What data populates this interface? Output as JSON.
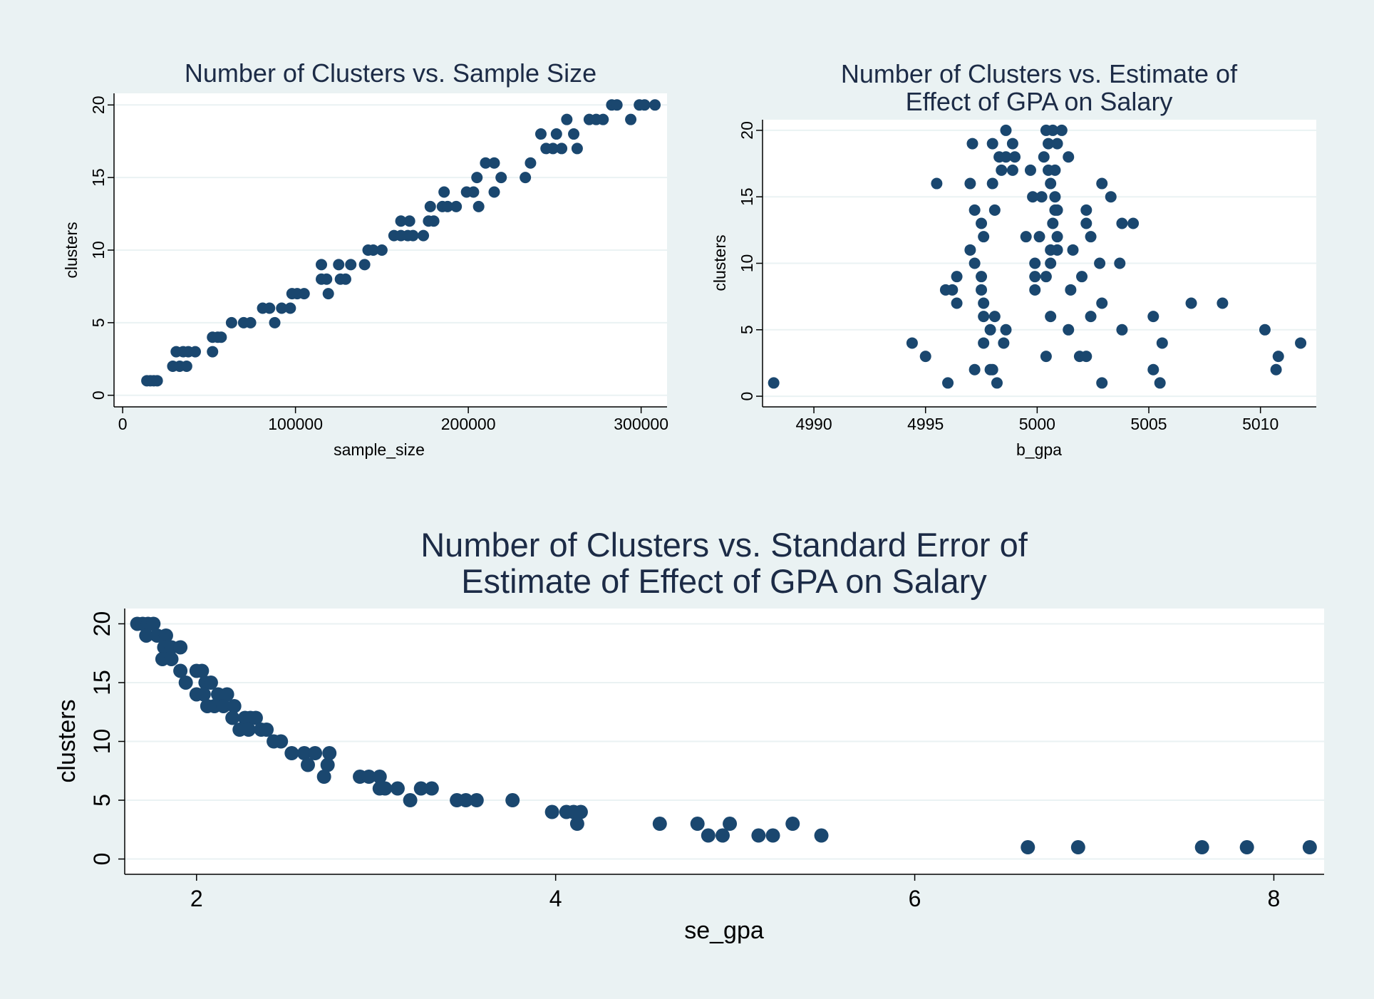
{
  "chart_data": [
    {
      "type": "scatter",
      "title": "Number of Clusters vs. Sample Size",
      "xlabel": "sample_size",
      "ylabel": "clusters",
      "xlim": [
        -5000,
        315000
      ],
      "ylim": [
        -0.8,
        20.8
      ],
      "xticks": [
        0,
        100000,
        200000,
        300000
      ],
      "xtick_labels": [
        "0",
        "100000",
        "200000",
        "300000"
      ],
      "yticks": [
        0,
        5,
        10,
        15,
        20
      ],
      "grid": true,
      "points": [
        [
          14000,
          1
        ],
        [
          16000,
          1
        ],
        [
          18000,
          1
        ],
        [
          20000,
          1
        ],
        [
          29000,
          2
        ],
        [
          33000,
          2
        ],
        [
          37000,
          2
        ],
        [
          31000,
          3
        ],
        [
          35000,
          3
        ],
        [
          38000,
          3
        ],
        [
          42000,
          3
        ],
        [
          52000,
          3
        ],
        [
          52000,
          4
        ],
        [
          55000,
          4
        ],
        [
          57000,
          4
        ],
        [
          63000,
          5
        ],
        [
          70000,
          5
        ],
        [
          74000,
          5
        ],
        [
          88000,
          5
        ],
        [
          81000,
          6
        ],
        [
          85000,
          6
        ],
        [
          92000,
          6
        ],
        [
          97000,
          6
        ],
        [
          98000,
          7
        ],
        [
          101000,
          7
        ],
        [
          105000,
          7
        ],
        [
          119000,
          7
        ],
        [
          115000,
          8
        ],
        [
          118000,
          8
        ],
        [
          126000,
          8
        ],
        [
          129000,
          8
        ],
        [
          115000,
          9
        ],
        [
          125000,
          9
        ],
        [
          132000,
          9
        ],
        [
          140000,
          9
        ],
        [
          142000,
          10
        ],
        [
          145000,
          10
        ],
        [
          150000,
          10
        ],
        [
          157000,
          11
        ],
        [
          161000,
          11
        ],
        [
          165000,
          11
        ],
        [
          168000,
          11
        ],
        [
          174000,
          11
        ],
        [
          161000,
          12
        ],
        [
          166000,
          12
        ],
        [
          177000,
          12
        ],
        [
          180000,
          12
        ],
        [
          178000,
          13
        ],
        [
          185000,
          13
        ],
        [
          188000,
          13
        ],
        [
          193000,
          13
        ],
        [
          206000,
          13
        ],
        [
          186000,
          14
        ],
        [
          199000,
          14
        ],
        [
          203000,
          14
        ],
        [
          215000,
          14
        ],
        [
          205000,
          15
        ],
        [
          219000,
          15
        ],
        [
          233000,
          15
        ],
        [
          210000,
          16
        ],
        [
          215000,
          16
        ],
        [
          236000,
          16
        ],
        [
          245000,
          17
        ],
        [
          249000,
          17
        ],
        [
          254000,
          17
        ],
        [
          263000,
          17
        ],
        [
          242000,
          18
        ],
        [
          251000,
          18
        ],
        [
          261000,
          18
        ],
        [
          257000,
          19
        ],
        [
          270000,
          19
        ],
        [
          274000,
          19
        ],
        [
          278000,
          19
        ],
        [
          294000,
          19
        ],
        [
          283000,
          20
        ],
        [
          286000,
          20
        ],
        [
          299000,
          20
        ],
        [
          302000,
          20
        ],
        [
          308000,
          20
        ]
      ]
    },
    {
      "type": "scatter",
      "title": "Number of Clusters vs. Estimate of Effect of GPA on Salary",
      "title_lines": [
        "Number of Clusters vs. Estimate of",
        "Effect of GPA on Salary"
      ],
      "xlabel": "b_gpa",
      "ylabel": "clusters",
      "xlim": [
        4987.7,
        5012.5
      ],
      "ylim": [
        -0.8,
        20.8
      ],
      "xticks": [
        4990,
        4995,
        5000,
        5005,
        5010
      ],
      "xtick_labels": [
        "4990",
        "4995",
        "5000",
        "5005",
        "5010"
      ],
      "yticks": [
        0,
        5,
        10,
        15,
        20
      ],
      "grid": true,
      "points": [
        [
          4988.2,
          1
        ],
        [
          4996.0,
          1
        ],
        [
          4998.2,
          1
        ],
        [
          5002.9,
          1
        ],
        [
          5005.5,
          1
        ],
        [
          4997.2,
          2
        ],
        [
          4997.9,
          2
        ],
        [
          4998.0,
          2
        ],
        [
          5005.2,
          2
        ],
        [
          5010.7,
          2
        ],
        [
          4995.0,
          3
        ],
        [
          5000.4,
          3
        ],
        [
          5001.9,
          3
        ],
        [
          5002.2,
          3
        ],
        [
          5010.8,
          3
        ],
        [
          4994.4,
          4
        ],
        [
          4997.6,
          4
        ],
        [
          4998.5,
          4
        ],
        [
          5005.6,
          4
        ],
        [
          5011.8,
          4
        ],
        [
          4997.9,
          5
        ],
        [
          4998.6,
          5
        ],
        [
          5001.4,
          5
        ],
        [
          5003.8,
          5
        ],
        [
          5010.2,
          5
        ],
        [
          4997.6,
          6
        ],
        [
          4998.1,
          6
        ],
        [
          5000.6,
          6
        ],
        [
          5002.4,
          6
        ],
        [
          5005.2,
          6
        ],
        [
          4996.4,
          7
        ],
        [
          4997.6,
          7
        ],
        [
          5002.9,
          7
        ],
        [
          5006.9,
          7
        ],
        [
          5008.3,
          7
        ],
        [
          4995.9,
          8
        ],
        [
          4996.2,
          8
        ],
        [
          4997.5,
          8
        ],
        [
          4999.9,
          8
        ],
        [
          5001.5,
          8
        ],
        [
          4996.4,
          9
        ],
        [
          4997.5,
          9
        ],
        [
          4999.9,
          9
        ],
        [
          5000.4,
          9
        ],
        [
          5002.0,
          9
        ],
        [
          4997.2,
          10
        ],
        [
          4999.9,
          10
        ],
        [
          5000.6,
          10
        ],
        [
          5002.8,
          10
        ],
        [
          5003.7,
          10
        ],
        [
          4997.0,
          11
        ],
        [
          5000.6,
          11
        ],
        [
          5000.9,
          11
        ],
        [
          5001.6,
          11
        ],
        [
          4997.6,
          12
        ],
        [
          4999.5,
          12
        ],
        [
          5000.1,
          12
        ],
        [
          5000.9,
          12
        ],
        [
          5002.4,
          12
        ],
        [
          4997.5,
          13
        ],
        [
          5000.7,
          13
        ],
        [
          5002.2,
          13
        ],
        [
          5003.8,
          13
        ],
        [
          5004.3,
          13
        ],
        [
          4997.2,
          14
        ],
        [
          4998.1,
          14
        ],
        [
          5000.8,
          14
        ],
        [
          5000.9,
          14
        ],
        [
          5002.2,
          14
        ],
        [
          4999.8,
          15
        ],
        [
          5000.2,
          15
        ],
        [
          5000.8,
          15
        ],
        [
          5003.3,
          15
        ],
        [
          4995.5,
          16
        ],
        [
          4997.0,
          16
        ],
        [
          4998.0,
          16
        ],
        [
          5000.6,
          16
        ],
        [
          5002.9,
          16
        ],
        [
          4998.4,
          17
        ],
        [
          4998.9,
          17
        ],
        [
          4999.7,
          17
        ],
        [
          5000.5,
          17
        ],
        [
          5000.8,
          17
        ],
        [
          4998.3,
          18
        ],
        [
          4998.6,
          18
        ],
        [
          4999.0,
          18
        ],
        [
          5000.3,
          18
        ],
        [
          5001.4,
          18
        ],
        [
          4997.1,
          19
        ],
        [
          4998.0,
          19
        ],
        [
          4998.9,
          19
        ],
        [
          5000.5,
          19
        ],
        [
          5000.9,
          19
        ],
        [
          4998.6,
          20
        ],
        [
          5000.4,
          20
        ],
        [
          5000.7,
          20
        ],
        [
          5001.1,
          20
        ]
      ]
    },
    {
      "type": "scatter",
      "title": "Number of Clusters vs. Standard Error of Estimate of Effect of GPA on Salary",
      "title_lines": [
        "Number of Clusters vs. Standard Error of",
        "Estimate of Effect of GPA on Salary"
      ],
      "xlabel": "se_gpa",
      "ylabel": "clusters",
      "xlim": [
        1.6,
        8.28
      ],
      "ylim": [
        -1.3,
        21.3
      ],
      "xticks": [
        2,
        4,
        6,
        8
      ],
      "xtick_labels": [
        "2",
        "4",
        "6",
        "8"
      ],
      "yticks": [
        0,
        5,
        10,
        15,
        20
      ],
      "grid": true,
      "points": [
        [
          1.67,
          20
        ],
        [
          1.7,
          20
        ],
        [
          1.73,
          20
        ],
        [
          1.76,
          20
        ],
        [
          1.72,
          19
        ],
        [
          1.78,
          19
        ],
        [
          1.83,
          19
        ],
        [
          1.82,
          18
        ],
        [
          1.86,
          18
        ],
        [
          1.91,
          18
        ],
        [
          1.81,
          17
        ],
        [
          1.86,
          17
        ],
        [
          1.91,
          16
        ],
        [
          2.0,
          16
        ],
        [
          2.03,
          16
        ],
        [
          1.94,
          15
        ],
        [
          2.05,
          15
        ],
        [
          2.08,
          15
        ],
        [
          2.0,
          14
        ],
        [
          2.04,
          14
        ],
        [
          2.12,
          14
        ],
        [
          2.17,
          14
        ],
        [
          2.06,
          13
        ],
        [
          2.1,
          13
        ],
        [
          2.15,
          13
        ],
        [
          2.21,
          13
        ],
        [
          2.2,
          12
        ],
        [
          2.27,
          12
        ],
        [
          2.3,
          12
        ],
        [
          2.33,
          12
        ],
        [
          2.24,
          11
        ],
        [
          2.29,
          11
        ],
        [
          2.36,
          11
        ],
        [
          2.39,
          11
        ],
        [
          2.43,
          10
        ],
        [
          2.47,
          10
        ],
        [
          2.53,
          9
        ],
        [
          2.6,
          9
        ],
        [
          2.66,
          9
        ],
        [
          2.74,
          9
        ],
        [
          2.62,
          8
        ],
        [
          2.73,
          8
        ],
        [
          2.71,
          7
        ],
        [
          2.91,
          7
        ],
        [
          2.96,
          7
        ],
        [
          3.02,
          7
        ],
        [
          3.02,
          6
        ],
        [
          3.05,
          6
        ],
        [
          3.12,
          6
        ],
        [
          3.25,
          6
        ],
        [
          3.31,
          6
        ],
        [
          3.19,
          5
        ],
        [
          3.45,
          5
        ],
        [
          3.5,
          5
        ],
        [
          3.56,
          5
        ],
        [
          3.76,
          5
        ],
        [
          3.98,
          4
        ],
        [
          4.06,
          4
        ],
        [
          4.1,
          4
        ],
        [
          4.14,
          4
        ],
        [
          4.12,
          3
        ],
        [
          4.58,
          3
        ],
        [
          4.79,
          3
        ],
        [
          4.97,
          3
        ],
        [
          5.32,
          3
        ],
        [
          4.85,
          2
        ],
        [
          4.93,
          2
        ],
        [
          5.13,
          2
        ],
        [
          5.21,
          2
        ],
        [
          5.48,
          2
        ],
        [
          6.63,
          1
        ],
        [
          6.91,
          1
        ],
        [
          7.6,
          1
        ],
        [
          7.85,
          1
        ],
        [
          8.2,
          1
        ]
      ]
    }
  ]
}
